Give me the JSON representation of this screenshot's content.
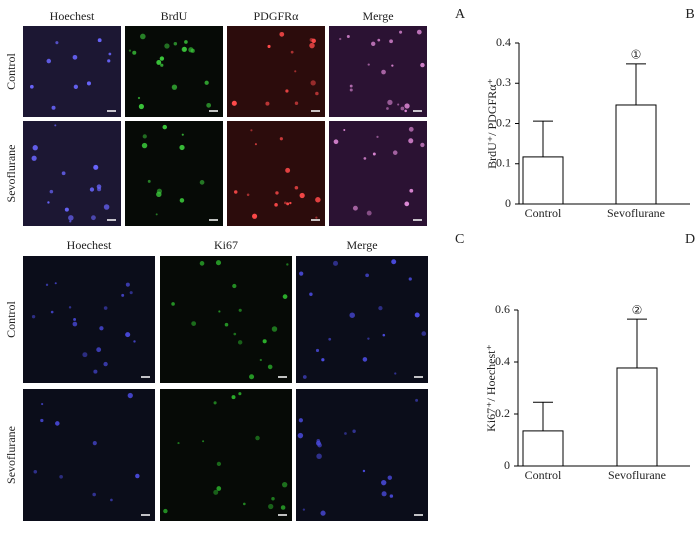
{
  "panels": {
    "A": {
      "label": "A",
      "columns": [
        "Hoechest",
        "BrdU",
        "PDGFRα",
        "Merge"
      ],
      "rows": [
        "Control",
        "Sevoflurane"
      ]
    },
    "C": {
      "label": "C",
      "columns": [
        "Hoechest",
        "Ki67",
        "Merge"
      ],
      "rows": [
        "Control",
        "Sevoflurane"
      ]
    }
  },
  "chart_data": [
    {
      "type": "bar",
      "panel": "B",
      "ylabel": "BrdU⁺/ PDGFRα⁺",
      "categories": [
        "Control",
        "Sevoflurane"
      ],
      "values": [
        0.117,
        0.246
      ],
      "errors": [
        0.089,
        0.102
      ],
      "color": "#ffffff",
      "annotation": {
        "text": "①",
        "category": "Sevoflurane"
      },
      "ylim": [
        0,
        0.4
      ],
      "yticks": [
        0,
        0.1,
        0.2,
        0.3,
        0.4
      ]
    },
    {
      "type": "bar",
      "panel": "D",
      "ylabel": "Ki67⁺/ Hoechest⁺",
      "categories": [
        "Control",
        "Sevoflurane"
      ],
      "values": [
        0.135,
        0.377
      ],
      "errors": [
        0.11,
        0.188
      ],
      "color": "#ffffff",
      "annotation": {
        "text": "②",
        "category": "Sevoflurane"
      },
      "ylim": [
        0,
        0.6
      ],
      "yticks": [
        0,
        0.2,
        0.4,
        0.6
      ]
    }
  ]
}
